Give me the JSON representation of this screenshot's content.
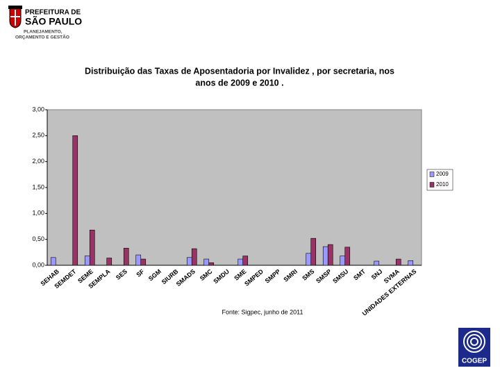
{
  "header": {
    "org_line1": "PREFEITURA DE",
    "org_line2": "SÃO PAULO",
    "dept_line1": "PLANEJAMENTO,",
    "dept_line2": "ORÇAMENTO E GESTÃO"
  },
  "footer_logo": "COGEP",
  "chart_data": {
    "type": "bar",
    "title_lines": [
      "Distribuição das Taxas de Aposentadoria por Invalidez , por secretaria,  nos",
      "anos de 2009 e 2010 ."
    ],
    "source": "Fonte: Sigpec, junho de 2011",
    "categories": [
      "SEHAB",
      "SEMDET",
      "SEME",
      "SEMPLA",
      "SES",
      "SF",
      "SGM",
      "SIURB",
      "SMADS",
      "SMC",
      "SMDU",
      "SME",
      "SMPED",
      "SMPP",
      "SMRI",
      "SMS",
      "SMSP",
      "SMSU",
      "SMT",
      "SNJ",
      "SVMA",
      "UNIDADES EXTERNAS"
    ],
    "series": [
      {
        "name": "2009",
        "color": "#9999ff",
        "values": [
          0.15,
          0,
          0.18,
          0,
          0,
          0.2,
          0,
          0,
          0.15,
          0.12,
          0,
          0.12,
          0,
          0,
          0,
          0.23,
          0.36,
          0.18,
          0,
          0.08,
          0,
          0.09
        ]
      },
      {
        "name": "2010",
        "color": "#993366",
        "values": [
          0,
          2.5,
          0.68,
          0.14,
          0.33,
          0.12,
          0,
          0,
          0.32,
          0.05,
          0,
          0.18,
          0,
          0,
          0,
          0.52,
          0.4,
          0.35,
          0,
          0,
          0.12,
          0
        ]
      }
    ],
    "ylim": [
      0,
      3
    ],
    "yticks": [
      {
        "value": 0,
        "label": "0,00"
      },
      {
        "value": 0.5,
        "label": "0,50"
      },
      {
        "value": 1,
        "label": "1,00"
      },
      {
        "value": 1.5,
        "label": "1,50"
      },
      {
        "value": 2,
        "label": "2,00"
      },
      {
        "value": 2.5,
        "label": "2,50"
      },
      {
        "value": 3,
        "label": "3,00"
      }
    ],
    "grid": false,
    "plot_background": "#c0c0c0",
    "legend": "right"
  }
}
